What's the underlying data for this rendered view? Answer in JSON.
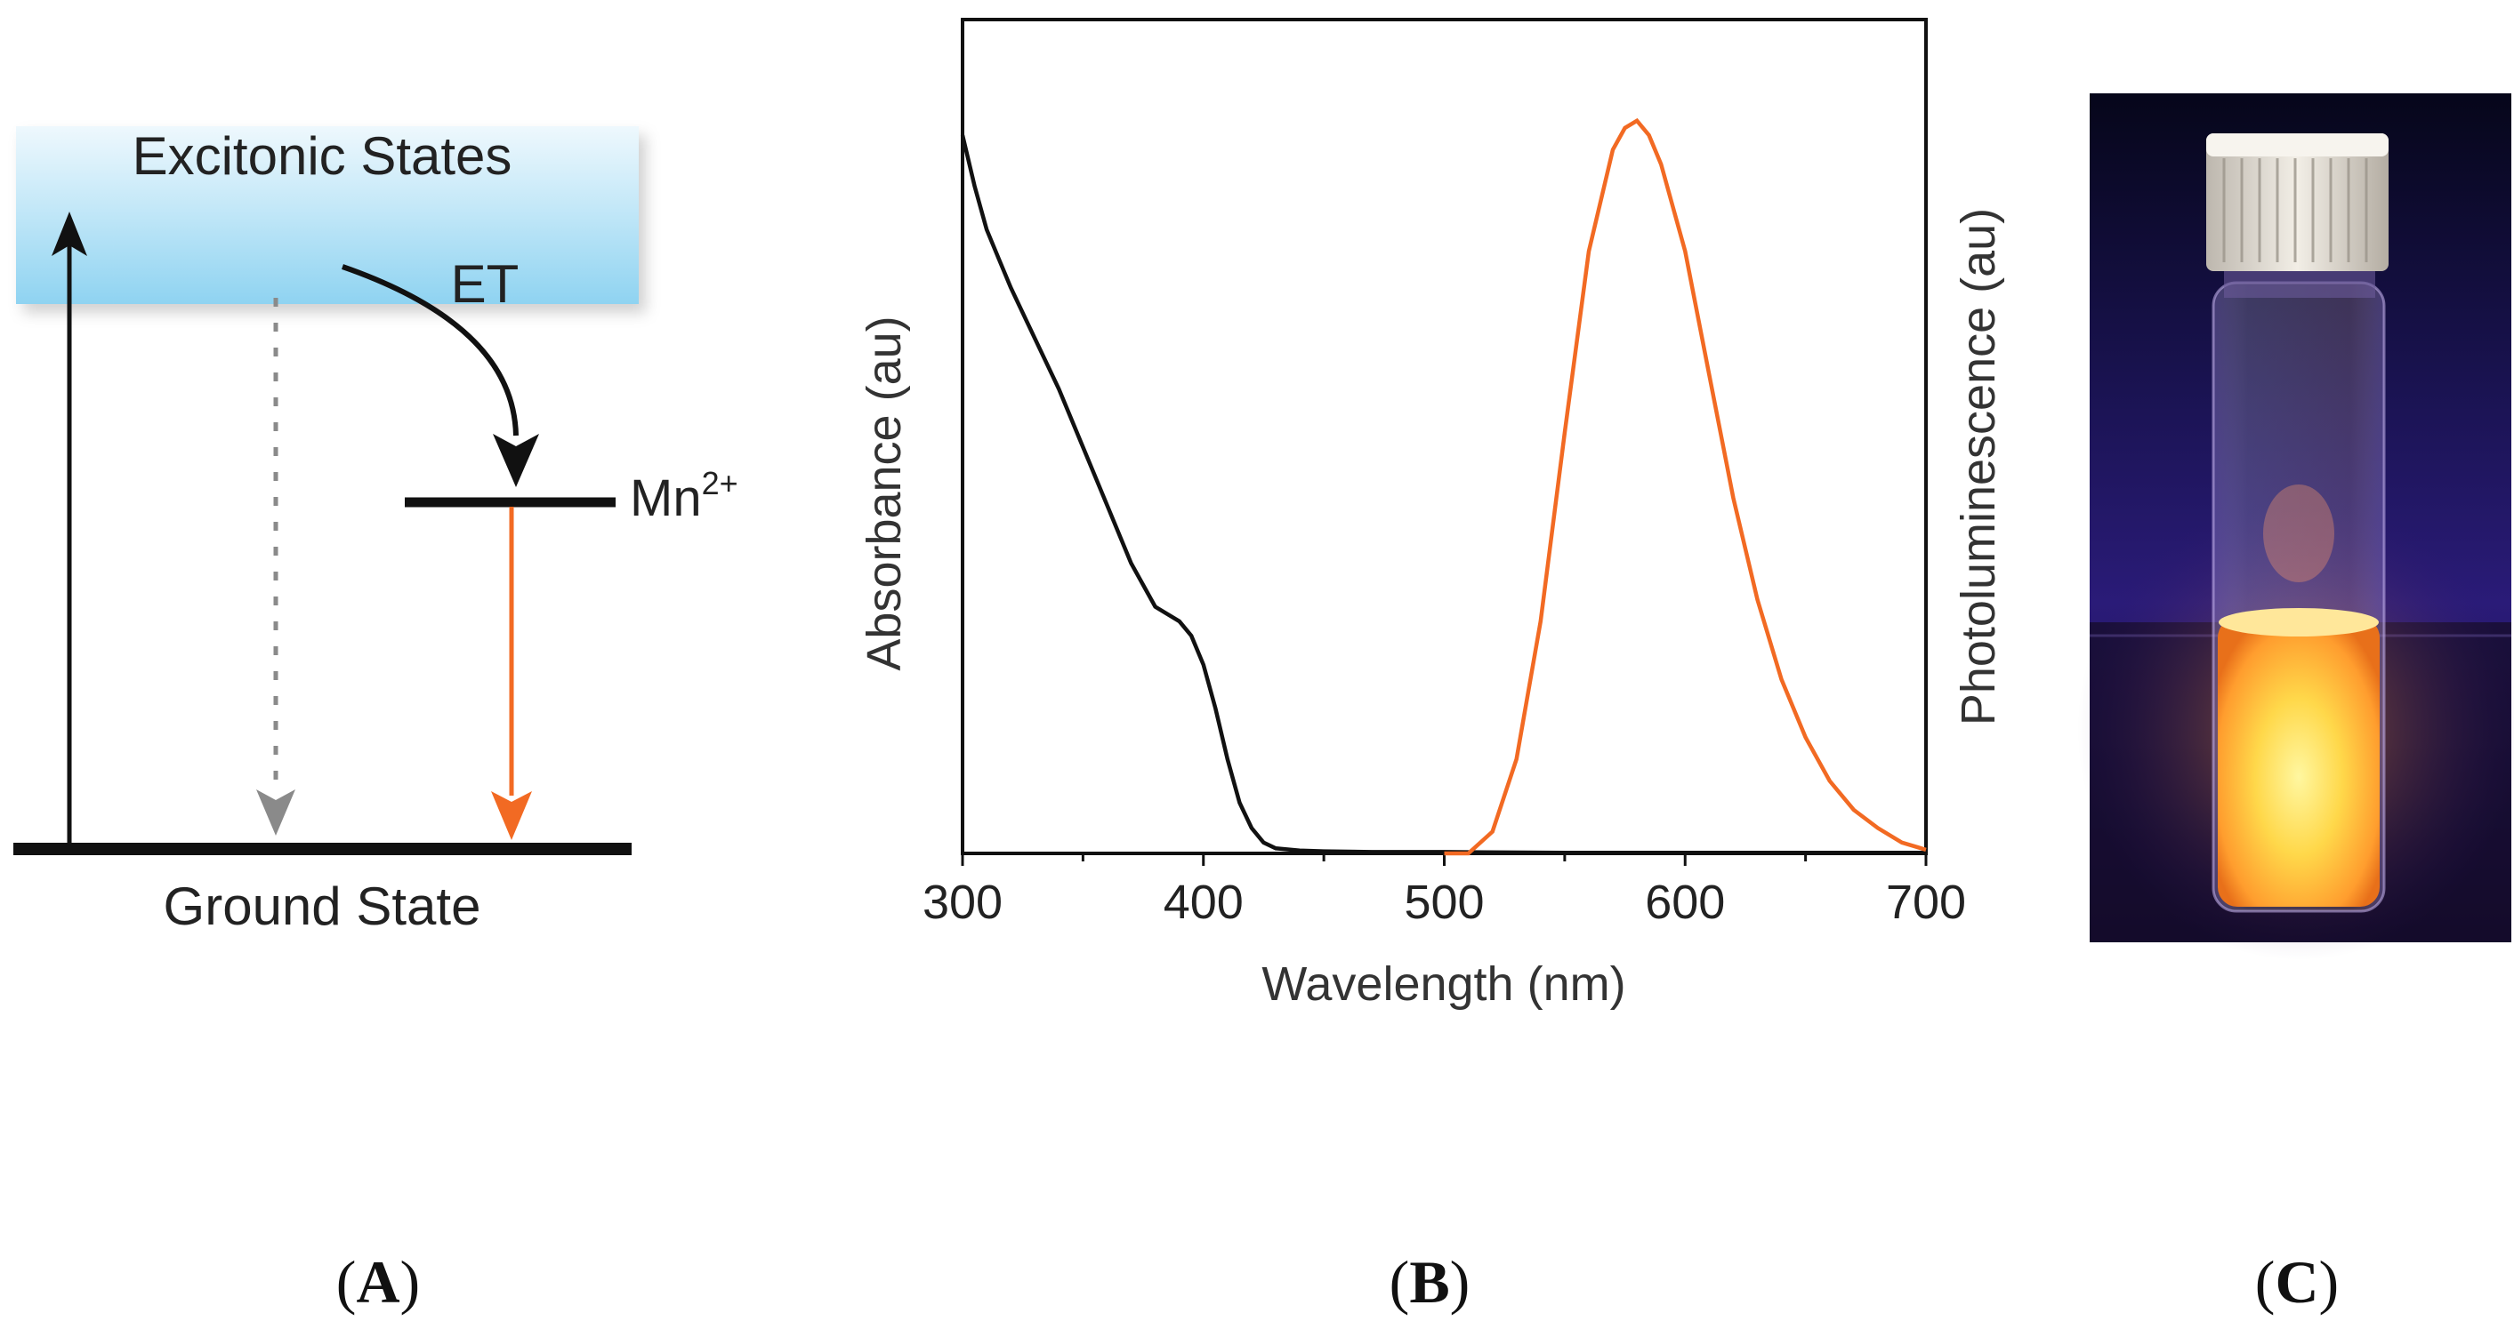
{
  "panel_a": {
    "excitonic_label": "Excitonic States",
    "et_label": "ET",
    "mn_label": "Mn",
    "mn_superscript": "2+",
    "ground_label": "Ground State",
    "colors": {
      "band_top": "#eef8fd",
      "band_bottom": "#8fd3f1",
      "emission": "#f26a23",
      "relaxation": "#8a8a8a"
    }
  },
  "panel_b": {
    "xlabel": "Wavelength (nm)",
    "ylabel_left": "Absorbance (au)",
    "ylabel_right": "Photoluminescence (au)"
  },
  "panel_c": {
    "description": "vial glowing orange under UV"
  },
  "panel_labels": [
    "A",
    "B",
    "C"
  ],
  "chart_data": {
    "type": "line",
    "title": "",
    "xlabel": "Wavelength (nm)",
    "ylabel": "Absorbance (au)",
    "y2label": "Photoluminescence (au)",
    "xlim": [
      300,
      700
    ],
    "ylim": [
      0,
      1
    ],
    "xticks": [
      300,
      400,
      500,
      600,
      700
    ],
    "grid": false,
    "series": [
      {
        "name": "Absorbance",
        "color": "#111111",
        "x": [
          300,
          305,
          310,
          315,
          320,
          330,
          340,
          350,
          360,
          370,
          375,
          380,
          385,
          390,
          395,
          400,
          405,
          410,
          415,
          420,
          425,
          430,
          440,
          450,
          470,
          500,
          550,
          600,
          650,
          700
        ],
        "y": [
          0.99,
          0.92,
          0.86,
          0.82,
          0.78,
          0.71,
          0.64,
          0.56,
          0.48,
          0.4,
          0.37,
          0.34,
          0.33,
          0.32,
          0.3,
          0.26,
          0.2,
          0.13,
          0.07,
          0.035,
          0.015,
          0.007,
          0.004,
          0.003,
          0.002,
          0.002,
          0.001,
          0.001,
          0.001,
          0.001
        ]
      },
      {
        "name": "Photoluminescence",
        "color": "#f26a23",
        "x": [
          500,
          510,
          520,
          530,
          540,
          550,
          560,
          570,
          575,
          580,
          585,
          590,
          600,
          610,
          620,
          630,
          640,
          650,
          660,
          670,
          680,
          690,
          700
        ],
        "y": [
          0.0,
          0.0,
          0.03,
          0.13,
          0.32,
          0.58,
          0.83,
          0.97,
          1.0,
          1.01,
          0.99,
          0.95,
          0.83,
          0.66,
          0.49,
          0.35,
          0.24,
          0.16,
          0.1,
          0.06,
          0.035,
          0.015,
          0.005
        ]
      }
    ]
  }
}
